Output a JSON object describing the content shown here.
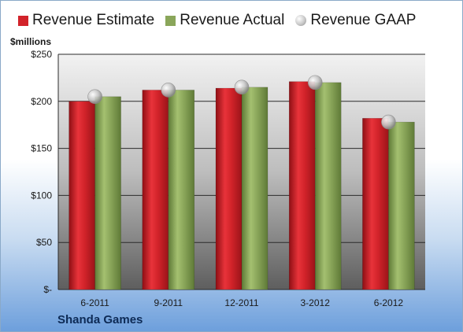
{
  "chart_data": {
    "type": "bar",
    "unit_label": "$millions",
    "categories": [
      "6-2011",
      "9-2011",
      "12-2011",
      "3-2012",
      "6-2012"
    ],
    "series": [
      {
        "name": "Revenue Estimate",
        "kind": "bar",
        "color": "#d2232a",
        "values": [
          200,
          212,
          214,
          221,
          182
        ]
      },
      {
        "name": "Revenue Actual",
        "kind": "bar",
        "color": "#8aa65a",
        "values": [
          205,
          212,
          215,
          220,
          178
        ]
      },
      {
        "name": "Revenue GAAP",
        "kind": "marker",
        "color": "#c0c0c0",
        "values": [
          205,
          212,
          215,
          220,
          178
        ]
      }
    ],
    "ylim": [
      0,
      250
    ],
    "yticks": [
      {
        "value": 0,
        "label": "$-"
      },
      {
        "value": 50,
        "label": "$50"
      },
      {
        "value": 100,
        "label": "$100"
      },
      {
        "value": 150,
        "label": "$150"
      },
      {
        "value": 200,
        "label": "$200"
      },
      {
        "value": 250,
        "label": "$250"
      }
    ],
    "grid": true,
    "legend_position": "top"
  },
  "footer": {
    "company": "Shanda Games"
  }
}
